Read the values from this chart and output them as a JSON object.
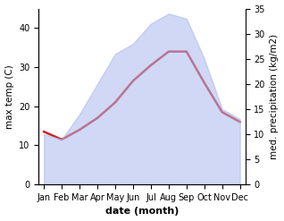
{
  "months": [
    "Jan",
    "Feb",
    "Mar",
    "Apr",
    "May",
    "Jun",
    "Jul",
    "Aug",
    "Sep",
    "Oct",
    "Nov",
    "Dec"
  ],
  "temp_line": [
    13.5,
    11.5,
    14.0,
    17.0,
    21.0,
    26.5,
    30.5,
    34.0,
    34.0,
    26.0,
    18.5,
    16.0
  ],
  "precip": [
    10.0,
    9.0,
    14.0,
    20.0,
    26.0,
    28.0,
    32.0,
    34.0,
    33.0,
    25.0,
    15.0,
    13.0
  ],
  "left_ylim": [
    0,
    45
  ],
  "right_ylim": [
    0,
    35
  ],
  "left_yticks": [
    0,
    10,
    20,
    30,
    40
  ],
  "right_yticks": [
    0,
    5,
    10,
    15,
    20,
    25,
    30,
    35
  ],
  "fill_color": "#aab8ee",
  "fill_alpha": 0.55,
  "line_color": "#cc2222",
  "line_width": 1.8,
  "xlabel": "date (month)",
  "ylabel_left": "max temp (C)",
  "ylabel_right": "med. precipitation (kg/m2)",
  "background_color": "#ffffff",
  "xlabel_fontsize": 8,
  "ylabel_fontsize": 7.5,
  "tick_fontsize": 7
}
